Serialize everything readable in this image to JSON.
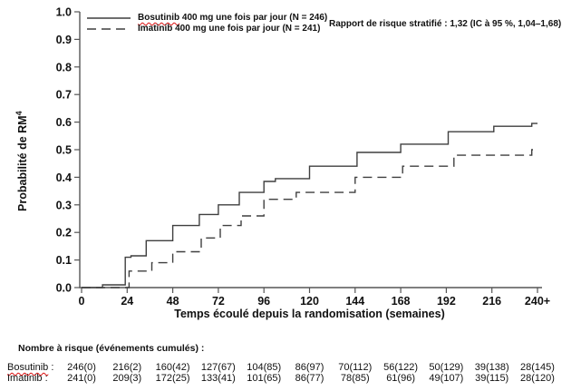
{
  "legend": {
    "items": [
      {
        "word": "Bosutinib",
        "rest": " 400 mg une fois par jour (N = 246)",
        "style": "solid"
      },
      {
        "word": "Imatinib",
        "rest": " 400 mg une fois par jour (N = 241)",
        "style": "dashed"
      }
    ]
  },
  "annotation": "Rapport de risque stratifié : 1,32 (IC à 95 %, 1,04–1,68)",
  "chart_data": {
    "type": "line",
    "subtype": "step-kaplan-meier",
    "title": "",
    "xlabel": "Temps écoulé depuis la randomisation (semaines)",
    "ylabel_base": "Probabilité de RM",
    "ylabel_sup": "4",
    "xlim": [
      0,
      240
    ],
    "ylim": [
      0,
      1
    ],
    "grid": false,
    "legend_position": "top-left",
    "xtick_values": [
      0,
      24,
      48,
      72,
      96,
      120,
      144,
      168,
      192,
      216,
      240
    ],
    "xtick_labels": [
      "0",
      "24",
      "48",
      "72",
      "96",
      "120",
      "144",
      "168",
      "192",
      "216",
      "240+"
    ],
    "ytick_values": [
      0,
      0.1,
      0.2,
      0.3,
      0.4,
      0.5,
      0.6,
      0.7,
      0.8,
      0.9,
      1.0
    ],
    "ytick_labels": [
      "0.0",
      "0.1",
      "0.2",
      "0.3",
      "0.4",
      "0.5",
      "0.6",
      "0.7",
      "0.8",
      "0.9",
      "1.0"
    ],
    "series": [
      {
        "name": "Bosutinib",
        "line": "solid",
        "color": "#3f3f3f",
        "steps": [
          [
            0,
            0
          ],
          [
            11,
            0.01
          ],
          [
            23,
            0.11
          ],
          [
            26,
            0.115
          ],
          [
            34,
            0.17
          ],
          [
            48,
            0.225
          ],
          [
            62,
            0.265
          ],
          [
            72,
            0.3
          ],
          [
            83,
            0.345
          ],
          [
            96,
            0.385
          ],
          [
            102,
            0.395
          ],
          [
            120,
            0.44
          ],
          [
            145,
            0.49
          ],
          [
            168,
            0.52
          ],
          [
            193,
            0.565
          ],
          [
            217,
            0.585
          ],
          [
            237,
            0.595
          ]
        ]
      },
      {
        "name": "Imatinib",
        "line": "dashed",
        "color": "#3f3f3f",
        "steps": [
          [
            0,
            0
          ],
          [
            25,
            0.06
          ],
          [
            37,
            0.09
          ],
          [
            48,
            0.13
          ],
          [
            63,
            0.18
          ],
          [
            73,
            0.225
          ],
          [
            84,
            0.26
          ],
          [
            96,
            0.32
          ],
          [
            113,
            0.345
          ],
          [
            144,
            0.4
          ],
          [
            169,
            0.44
          ],
          [
            196,
            0.48
          ],
          [
            237,
            0.5
          ]
        ]
      }
    ]
  },
  "risk_table": {
    "header": "Nombre à risque (événements cumulés) :",
    "rows": [
      {
        "key": "bosutinib",
        "label_word": "Bosutinib",
        "label_suffix": " :",
        "values": [
          "246(0)",
          "216(2)",
          "160(42)",
          "127(67)",
          "104(85)",
          "86(97)",
          "70(112)",
          "56(122)",
          "50(129)",
          "39(138)",
          "28(145)"
        ]
      },
      {
        "key": "imatinib",
        "label_word": "Imatinib",
        "label_suffix": " :",
        "values": [
          "241(0)",
          "209(3)",
          "172(25)",
          "133(41)",
          "101(65)",
          "86(77)",
          "78(85)",
          "61(96)",
          "49(107)",
          "39(115)",
          "28(120)"
        ]
      }
    ]
  }
}
